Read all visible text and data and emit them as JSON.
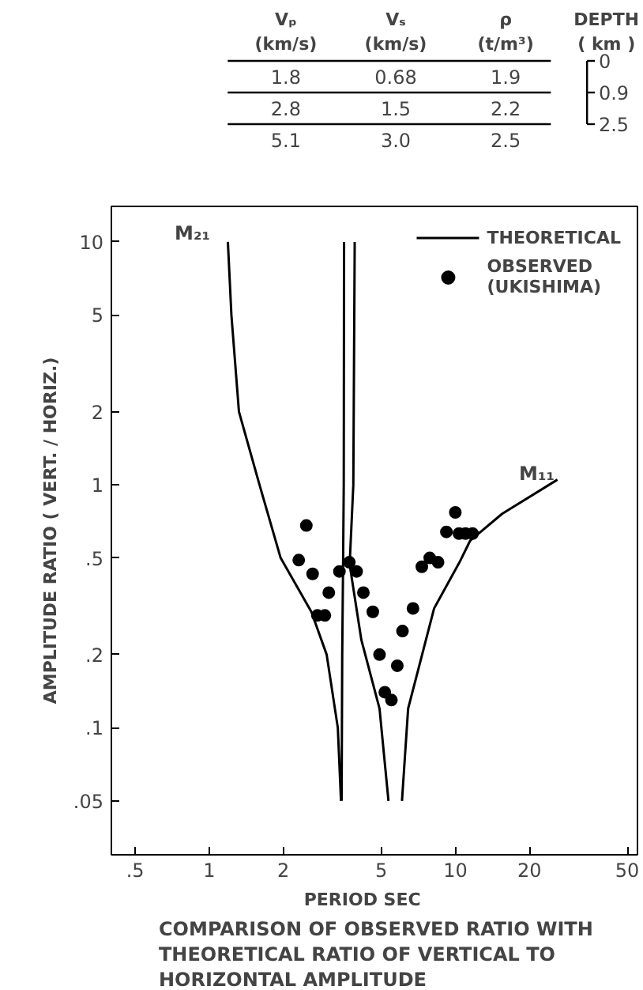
{
  "chart_data": {
    "type": "scatter",
    "title": "COMPARISON OF OBSERVED RATIO WITH THEORETICAL RATIO OF VERTICAL TO HORIZONTAL AMPLITUDE",
    "xlabel": "PERIOD     SEC",
    "ylabel": "AMPLITUDE RATIO ( VERT. / HORIZ.)",
    "log": "xy",
    "grid": false,
    "legend": "top right",
    "xlim": [
      0.4,
      55
    ],
    "ylim": [
      0.03,
      14
    ],
    "xticks": [
      {
        "value": 0.5,
        "label": ".5"
      },
      1,
      2,
      5,
      10,
      20,
      50
    ],
    "yticks": [
      {
        "value": 0.05,
        "label": ".05"
      },
      {
        "value": 0.1,
        "label": ".1"
      },
      {
        "value": 0.2,
        "label": ".2"
      },
      {
        "value": 0.5,
        "label": ".5"
      },
      1,
      2,
      5,
      10
    ],
    "series": [
      {
        "name": "THEORETICAL",
        "type": "line",
        "line_style": "solid",
        "color": "#000000",
        "x": [
          1.19,
          1.23,
          1.32,
          1.6,
          1.95,
          2.6,
          3.0,
          3.33,
          3.43,
          null,
          3.53,
          3.52,
          3.5,
          3.47,
          3.45,
          null,
          3.9,
          3.85,
          3.72,
          4.15,
          4.92,
          5.35,
          null,
          6.07,
          6.43,
          8.2,
          10.4,
          11.5,
          15.5,
          26
        ],
        "values": [
          10,
          5,
          2,
          1,
          0.5,
          0.3,
          0.2,
          0.1,
          0.05,
          null,
          10,
          1,
          0.5,
          0.2,
          0.05,
          null,
          10,
          1,
          0.47,
          0.23,
          0.12,
          0.05,
          null,
          0.05,
          0.12,
          0.31,
          0.48,
          0.59,
          0.76,
          1.05
        ]
      },
      {
        "name": "OBSERVED\n(UKISHIMA)",
        "marker": "circle",
        "color": "#000000",
        "x": [
          2.31,
          2.48,
          2.63,
          2.75,
          2.95,
          3.06,
          3.38,
          3.71,
          3.97,
          4.23,
          4.62,
          4.92,
          5.17,
          5.5,
          5.81,
          6.1,
          6.73,
          7.31,
          7.87,
          8.51,
          9.2,
          10.0,
          10.35,
          11.0,
          11.75
        ],
        "values": [
          0.49,
          0.68,
          0.43,
          0.29,
          0.29,
          0.36,
          0.44,
          0.48,
          0.44,
          0.36,
          0.3,
          0.2,
          0.14,
          0.13,
          0.18,
          0.25,
          0.31,
          0.46,
          0.5,
          0.48,
          0.64,
          0.77,
          0.63,
          0.63,
          0.63
        ]
      }
    ],
    "annotations": [
      "M₂₁",
      "M₁₁",
      "Vₚ\n(km/s)",
      "Vₛ\n(km/s)",
      "ρ\n(t/m³)",
      "DEPTH\n( km )",
      "1.8",
      "0.68",
      "1.9",
      "0",
      "2.8",
      "1.5",
      "2.2",
      "0.9",
      "5.1",
      "3.0",
      "2.5",
      "2.5"
    ]
  }
}
